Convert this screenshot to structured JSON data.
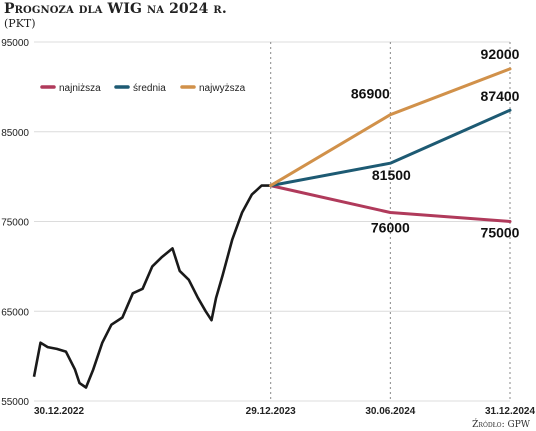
{
  "chart_data": {
    "type": "line",
    "title": "Prognoza dla WIG na 2024 r.",
    "unit": "(PKT)",
    "source": "Źródło: GPW",
    "ylim": [
      55000,
      95000
    ],
    "y_ticks": [
      "95000",
      "85000",
      "75000",
      "65000",
      "55000"
    ],
    "x_tick_labels": [
      "30.12.2022",
      "29.12.2023",
      "30.06.2024",
      "31.12.2024"
    ],
    "x_range": [
      "2022-12-30",
      "2024-12-31"
    ],
    "legend": [
      {
        "name": "najniższa",
        "color": "#b03a5b"
      },
      {
        "name": "średnia",
        "color": "#1d5a73"
      },
      {
        "name": "najwyższa",
        "color": "#d1914a"
      }
    ],
    "colors": {
      "history": "#1a1a1a",
      "grid": "#dcdcdc",
      "marker": "#888888"
    },
    "history": {
      "name": "WIG",
      "x": [
        "2022-12-30",
        "2023-01-09",
        "2023-01-20",
        "2023-02-03",
        "2023-02-17",
        "2023-03-03",
        "2023-03-10",
        "2023-03-20",
        "2023-03-31",
        "2023-04-14",
        "2023-04-28",
        "2023-05-15",
        "2023-05-31",
        "2023-06-15",
        "2023-06-30",
        "2023-07-14",
        "2023-07-31",
        "2023-08-11",
        "2023-08-25",
        "2023-09-08",
        "2023-09-20",
        "2023-09-29",
        "2023-10-06",
        "2023-10-16",
        "2023-10-31",
        "2023-11-15",
        "2023-11-30",
        "2023-12-15",
        "2023-12-29"
      ],
      "y": [
        57700,
        61500,
        61000,
        60800,
        60500,
        58500,
        57000,
        56500,
        58500,
        61500,
        63500,
        64300,
        67000,
        67500,
        70000,
        71000,
        72000,
        69500,
        68500,
        66500,
        65000,
        64000,
        66500,
        69000,
        73000,
        76000,
        78000,
        79000,
        79000
      ]
    },
    "series": [
      {
        "name": "najniższa",
        "x": [
          "2023-12-29",
          "2024-06-30",
          "2024-12-31"
        ],
        "y": [
          79000,
          76000,
          75000
        ],
        "labels": [
          "",
          "76000",
          "75000"
        ]
      },
      {
        "name": "średnia",
        "x": [
          "2023-12-29",
          "2024-06-30",
          "2024-12-31"
        ],
        "y": [
          79000,
          81500,
          87400
        ],
        "labels": [
          "",
          "81500",
          "87400"
        ]
      },
      {
        "name": "najwyższa",
        "x": [
          "2023-12-29",
          "2024-06-30",
          "2024-12-31"
        ],
        "y": [
          79000,
          86900,
          92000
        ],
        "labels": [
          "",
          "86900",
          "92000"
        ]
      }
    ]
  }
}
